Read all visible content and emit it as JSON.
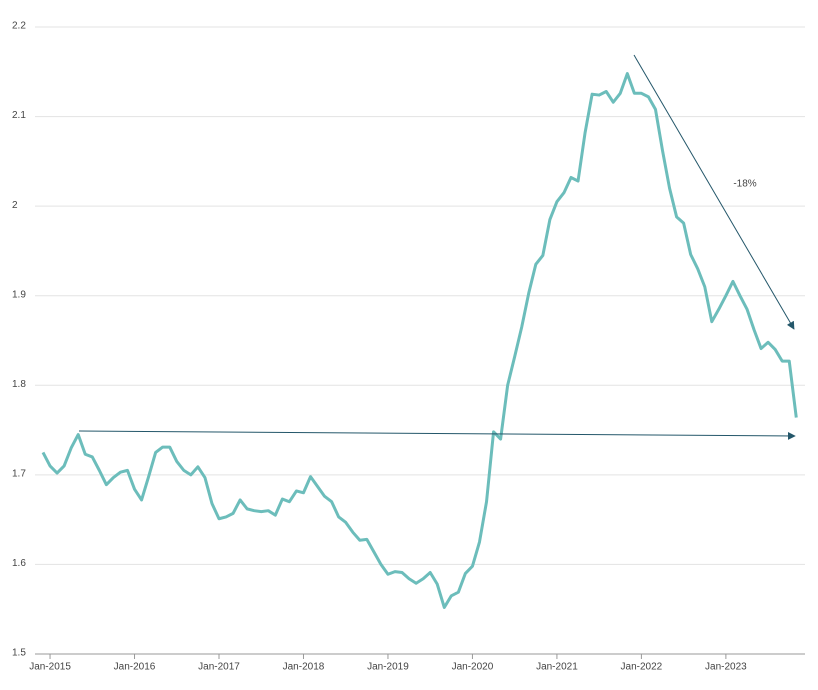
{
  "chart_data": {
    "type": "line",
    "x": [
      "2014-12",
      "2015-01",
      "2015-02",
      "2015-03",
      "2015-04",
      "2015-05",
      "2015-06",
      "2015-07",
      "2015-08",
      "2015-09",
      "2015-10",
      "2015-11",
      "2015-12",
      "2016-01",
      "2016-02",
      "2016-03",
      "2016-04",
      "2016-05",
      "2016-06",
      "2016-07",
      "2016-08",
      "2016-09",
      "2016-10",
      "2016-11",
      "2016-12",
      "2017-01",
      "2017-02",
      "2017-03",
      "2017-04",
      "2017-05",
      "2017-06",
      "2017-07",
      "2017-08",
      "2017-09",
      "2017-10",
      "2017-11",
      "2017-12",
      "2018-01",
      "2018-02",
      "2018-03",
      "2018-04",
      "2018-05",
      "2018-06",
      "2018-07",
      "2018-08",
      "2018-09",
      "2018-10",
      "2018-11",
      "2018-12",
      "2019-01",
      "2019-02",
      "2019-03",
      "2019-04",
      "2019-05",
      "2019-06",
      "2019-07",
      "2019-08",
      "2019-09",
      "2019-10",
      "2019-11",
      "2019-12",
      "2020-01",
      "2020-02",
      "2020-03",
      "2020-04",
      "2020-05",
      "2020-06",
      "2020-07",
      "2020-08",
      "2020-09",
      "2020-10",
      "2020-11",
      "2020-12",
      "2021-01",
      "2021-02",
      "2021-03",
      "2021-04",
      "2021-05",
      "2021-06",
      "2021-07",
      "2021-08",
      "2021-09",
      "2021-10",
      "2021-11",
      "2021-12",
      "2022-01",
      "2022-02",
      "2022-03",
      "2022-04",
      "2022-05",
      "2022-06",
      "2022-07",
      "2022-08",
      "2022-09",
      "2022-10",
      "2022-11",
      "2022-12",
      "2023-01",
      "2023-02",
      "2023-03",
      "2023-04",
      "2023-05",
      "2023-06",
      "2023-07",
      "2023-08",
      "2023-09",
      "2023-10",
      "2023-11"
    ],
    "series": [
      {
        "color": "#6cbdbb",
        "values": [
          1.725,
          1.71,
          1.702,
          1.71,
          1.73,
          1.745,
          1.723,
          1.72,
          1.705,
          1.689,
          1.697,
          1.703,
          1.705,
          1.684,
          1.672,
          1.698,
          1.725,
          1.731,
          1.731,
          1.715,
          1.705,
          1.7,
          1.709,
          1.697,
          1.668,
          1.651,
          1.653,
          1.657,
          1.672,
          1.662,
          1.66,
          1.659,
          1.66,
          1.655,
          1.673,
          1.67,
          1.682,
          1.68,
          1.698,
          1.687,
          1.676,
          1.67,
          1.653,
          1.647,
          1.636,
          1.627,
          1.628,
          1.614,
          1.6,
          1.589,
          1.592,
          1.591,
          1.584,
          1.579,
          1.584,
          1.591,
          1.578,
          1.552,
          1.565,
          1.569,
          1.59,
          1.598,
          1.625,
          1.67,
          1.748,
          1.74,
          1.8,
          1.832,
          1.865,
          1.903,
          1.935,
          1.945,
          1.985,
          2.005,
          2.015,
          2.032,
          2.028,
          2.082,
          2.125,
          2.124,
          2.128,
          2.116,
          2.126,
          2.148,
          2.126,
          2.126,
          2.122,
          2.108,
          2.062,
          2.02,
          1.988,
          1.981,
          1.946,
          1.93,
          1.91,
          1.871,
          1.885,
          1.9,
          1.916,
          1.9,
          1.885,
          1.862,
          1.841,
          1.848,
          1.84,
          1.827,
          1.827,
          1.764
        ]
      }
    ],
    "xticks": [
      {
        "value": "2015-01",
        "label": "Jan-2015"
      },
      {
        "value": "2016-01",
        "label": "Jan-2016"
      },
      {
        "value": "2017-01",
        "label": "Jan-2017"
      },
      {
        "value": "2018-01",
        "label": "Jan-2018"
      },
      {
        "value": "2019-01",
        "label": "Jan-2019"
      },
      {
        "value": "2020-01",
        "label": "Jan-2020"
      },
      {
        "value": "2021-01",
        "label": "Jan-2021"
      },
      {
        "value": "2022-01",
        "label": "Jan-2022"
      },
      {
        "value": "2023-01",
        "label": "Jan-2023"
      }
    ],
    "ylim": [
      1.5,
      2.2
    ],
    "yticks": [
      1.5,
      1.6,
      1.7,
      1.8,
      1.9,
      2,
      2.1,
      2.2
    ],
    "grid": true,
    "annotations": [
      {
        "text": "-18%"
      }
    ]
  }
}
